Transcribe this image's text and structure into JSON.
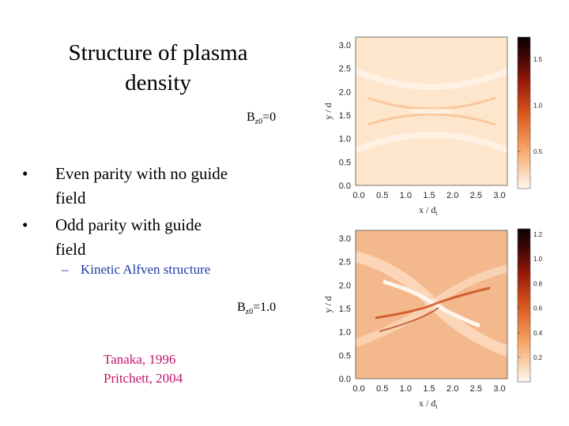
{
  "slide": {
    "title": "Structure of plasma density",
    "bullets": [
      {
        "marker": "•",
        "text": "Even parity with no guide field"
      },
      {
        "marker": "•",
        "text": "Odd parity with guide field"
      }
    ],
    "sub_bullet": {
      "marker": "–",
      "text": "Kinetic Alfven structure"
    },
    "references": [
      "Tanaka, 1996",
      "Pritchett, 2004"
    ],
    "colors": {
      "sub_bullet": "#1f3aa6",
      "references": "#c0166a"
    }
  },
  "plots": [
    {
      "annotation_base": "B",
      "annotation_sub": "z0",
      "annotation_value": "=0",
      "x_label": "x / d",
      "x_label_sub": "i",
      "y_label": "y / d",
      "x_ticks": [
        "0.0",
        "0.5",
        "1.0",
        "1.5",
        "2.0",
        "2.5",
        "3.0"
      ],
      "y_ticks": [
        "0.0",
        "0.5",
        "1.0",
        "1.5",
        "2.0",
        "2.5",
        "3.0"
      ],
      "colorbar_ticks": [
        "0.5",
        "1.0",
        "1.5"
      ]
    },
    {
      "annotation_base": "B",
      "annotation_sub": "z0",
      "annotation_value": "=1.0",
      "x_label": "x / d",
      "x_label_sub": "i",
      "y_label": "y / d",
      "x_ticks": [
        "0.0",
        "0.5",
        "1.0",
        "1.5",
        "2.0",
        "2.5",
        "3.0"
      ],
      "y_ticks": [
        "0.0",
        "0.5",
        "1.0",
        "1.5",
        "2.0",
        "2.5",
        "3.0"
      ],
      "colorbar_ticks": [
        "0.2",
        "0.4",
        "0.6",
        "0.8",
        "1.0",
        "1.2"
      ]
    }
  ]
}
